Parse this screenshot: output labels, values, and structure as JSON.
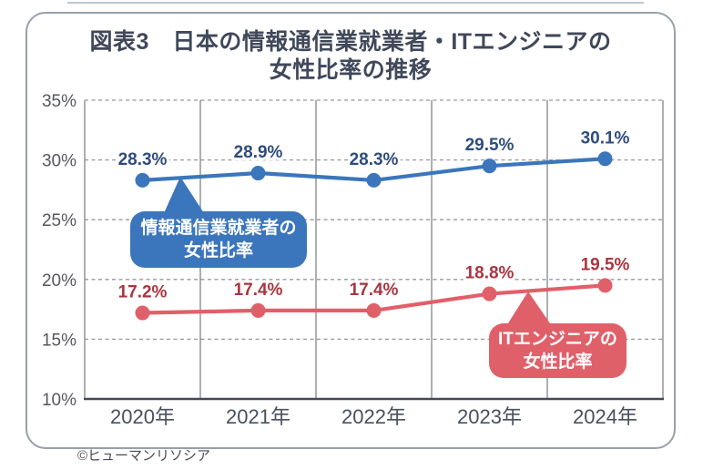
{
  "page": {
    "title_line1": "図表3　日本の情報通信業就業者・ITエンジニアの",
    "title_line2": "女性比率の推移",
    "credit": "©ヒューマンリソシア"
  },
  "callouts": {
    "blue": {
      "line1": "情報通信業就業者の",
      "line2": "女性比率"
    },
    "red": {
      "line1": "ITエンジニアの",
      "line2": "女性比率"
    }
  },
  "colors": {
    "blue": "#3b76bc",
    "blue-label": "#2e4c7c",
    "red": "#e0606a",
    "red-label": "#a93540",
    "axis": "#434955",
    "grid": "#98989e",
    "separator": "#83848a",
    "ytick": "#56575f",
    "xtick": "#49505e",
    "title": "#40485a",
    "card-border": "#97a0ab",
    "credit": "#4b4b52"
  },
  "chart_data": {
    "type": "line",
    "title": "図表3 日本の情報通信業就業者・ITエンジニアの女性比率の推移",
    "categories": [
      "2020年",
      "2021年",
      "2022年",
      "2023年",
      "2024年"
    ],
    "series": [
      {
        "name": "情報通信業就業者の女性比率",
        "color_key": "blue",
        "label_color_key": "blue-label",
        "values": [
          28.3,
          28.9,
          28.3,
          29.5,
          30.1
        ],
        "labels": [
          "28.3%",
          "28.9%",
          "28.3%",
          "29.5%",
          "30.1%"
        ]
      },
      {
        "name": "ITエンジニアの女性比率",
        "color_key": "red",
        "label_color_key": "red-label",
        "values": [
          17.2,
          17.4,
          17.4,
          18.8,
          19.5
        ],
        "labels": [
          "17.2%",
          "17.4%",
          "17.4%",
          "18.8%",
          "19.5%"
        ]
      }
    ],
    "ylim": [
      10,
      35
    ],
    "ytick_step": 5,
    "ytick_suffix": "%",
    "ytick_labels": [
      "35%",
      "30%",
      "25%",
      "20%",
      "15%",
      "10%"
    ],
    "xlabel": "",
    "ylabel": "",
    "grid": "horizontal-dashed-with-vertical-solid-separators",
    "legend": "inline-callout-bubbles"
  }
}
